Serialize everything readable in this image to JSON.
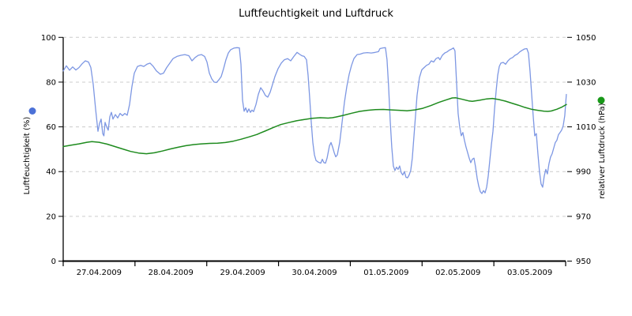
{
  "chart_data": {
    "type": "line",
    "title": "Luftfeuchtigkeit und Luftdruck",
    "grid": "horizontal-dashed",
    "grid_color": "#cccccc",
    "axis_color": "#000000",
    "background_color": "#ffffff",
    "x_axis": {
      "tick_labels": [
        "27.04.2009",
        "28.04.2009",
        "29.04.2009",
        "30.04.2009",
        "01.05.2009",
        "02.05.2009",
        "03.05.2009"
      ],
      "days": 7
    },
    "y_left": {
      "label": "Luftfeuchtigkeit (%)",
      "range": [
        0,
        100
      ],
      "ticks": [
        0,
        20,
        40,
        60,
        80,
        100
      ],
      "legend_marker_color": "#4c71d7"
    },
    "y_right": {
      "label": "relativer Luftdruck (hPa)",
      "range": [
        950,
        1050
      ],
      "ticks": [
        950,
        970,
        990,
        1010,
        1030,
        1050
      ],
      "legend_marker_color": "#189818"
    },
    "series": [
      {
        "name": "Luftfeuchtigkeit",
        "unit": "%",
        "axis": "left",
        "color": "#7d97e3",
        "stroke_width": 1.3,
        "points": [
          [
            0,
            85
          ],
          [
            0.044,
            87.3
          ],
          [
            0.088,
            85.3
          ],
          [
            0.132,
            86.8
          ],
          [
            0.176,
            85.4
          ],
          [
            0.22,
            86.5
          ],
          [
            0.264,
            88.2
          ],
          [
            0.308,
            89.5
          ],
          [
            0.352,
            89
          ],
          [
            0.385,
            86.5
          ],
          [
            0.418,
            79
          ],
          [
            0.451,
            68
          ],
          [
            0.484,
            58
          ],
          [
            0.506,
            61.5
          ],
          [
            0.528,
            63.5
          ],
          [
            0.55,
            57
          ],
          [
            0.567,
            56
          ],
          [
            0.583,
            62
          ],
          [
            0.605,
            60
          ],
          [
            0.627,
            58.5
          ],
          [
            0.649,
            64.5
          ],
          [
            0.671,
            66.5
          ],
          [
            0.693,
            63.5
          ],
          [
            0.726,
            65.5
          ],
          [
            0.759,
            64
          ],
          [
            0.792,
            66
          ],
          [
            0.825,
            65
          ],
          [
            0.858,
            66
          ],
          [
            0.891,
            65.2
          ],
          [
            0.924,
            70
          ],
          [
            0.957,
            78
          ],
          [
            0.991,
            84
          ],
          [
            1.035,
            87
          ],
          [
            1.079,
            87.5
          ],
          [
            1.123,
            87
          ],
          [
            1.167,
            88
          ],
          [
            1.211,
            88.5
          ],
          [
            1.255,
            87
          ],
          [
            1.299,
            85
          ],
          [
            1.354,
            83.5
          ],
          [
            1.398,
            84
          ],
          [
            1.442,
            86.5
          ],
          [
            1.486,
            88.5
          ],
          [
            1.53,
            90.5
          ],
          [
            1.585,
            91.5
          ],
          [
            1.64,
            92
          ],
          [
            1.695,
            92.3
          ],
          [
            1.75,
            91.8
          ],
          [
            1.794,
            89.5
          ],
          [
            1.838,
            91
          ],
          [
            1.882,
            92
          ],
          [
            1.926,
            92.3
          ],
          [
            1.97,
            91.5
          ],
          [
            2.003,
            89
          ],
          [
            2.036,
            84
          ],
          [
            2.069,
            81.5
          ],
          [
            2.102,
            80
          ],
          [
            2.135,
            79.8
          ],
          [
            2.168,
            81
          ],
          [
            2.201,
            82.5
          ],
          [
            2.234,
            86
          ],
          [
            2.267,
            90
          ],
          [
            2.3,
            93
          ],
          [
            2.333,
            94.5
          ],
          [
            2.377,
            95.2
          ],
          [
            2.421,
            95.4
          ],
          [
            2.454,
            95.3
          ],
          [
            2.476,
            88
          ],
          [
            2.498,
            72
          ],
          [
            2.52,
            67
          ],
          [
            2.542,
            68.5
          ],
          [
            2.564,
            66.5
          ],
          [
            2.586,
            68
          ],
          [
            2.608,
            66.5
          ],
          [
            2.63,
            67.5
          ],
          [
            2.652,
            66.8
          ],
          [
            2.686,
            70
          ],
          [
            2.719,
            74.5
          ],
          [
            2.752,
            77.5
          ],
          [
            2.785,
            76
          ],
          [
            2.818,
            74
          ],
          [
            2.851,
            73.3
          ],
          [
            2.884,
            75.5
          ],
          [
            2.917,
            79
          ],
          [
            2.95,
            82.5
          ],
          [
            2.994,
            86
          ],
          [
            3.038,
            88.5
          ],
          [
            3.082,
            90
          ],
          [
            3.126,
            90.5
          ],
          [
            3.17,
            89.5
          ],
          [
            3.214,
            91.5
          ],
          [
            3.258,
            93.3
          ],
          [
            3.291,
            92.5
          ],
          [
            3.324,
            91.8
          ],
          [
            3.357,
            91.5
          ],
          [
            3.39,
            90
          ],
          [
            3.412,
            83
          ],
          [
            3.434,
            73
          ],
          [
            3.456,
            62
          ],
          [
            3.478,
            53
          ],
          [
            3.5,
            47.5
          ],
          [
            3.522,
            45
          ],
          [
            3.555,
            44.2
          ],
          [
            3.588,
            43.8
          ],
          [
            3.61,
            45.5
          ],
          [
            3.632,
            44
          ],
          [
            3.654,
            43.8
          ],
          [
            3.676,
            46
          ],
          [
            3.709,
            51.5
          ],
          [
            3.731,
            53
          ],
          [
            3.753,
            51
          ],
          [
            3.775,
            48.5
          ],
          [
            3.797,
            46.6
          ],
          [
            3.819,
            47.5
          ],
          [
            3.852,
            53
          ],
          [
            3.885,
            62
          ],
          [
            3.918,
            71
          ],
          [
            3.951,
            78
          ],
          [
            3.984,
            83.5
          ],
          [
            4.017,
            87.5
          ],
          [
            4.05,
            90.5
          ],
          [
            4.094,
            92.3
          ],
          [
            4.138,
            92.5
          ],
          [
            4.182,
            93
          ],
          [
            4.237,
            93.2
          ],
          [
            4.292,
            93
          ],
          [
            4.347,
            93.3
          ],
          [
            4.391,
            93.6
          ],
          [
            4.413,
            95
          ],
          [
            4.457,
            95.3
          ],
          [
            4.49,
            95.4
          ],
          [
            4.512,
            90
          ],
          [
            4.534,
            78
          ],
          [
            4.556,
            63
          ],
          [
            4.578,
            51
          ],
          [
            4.6,
            42.5
          ],
          [
            4.622,
            40.5
          ],
          [
            4.644,
            42
          ],
          [
            4.666,
            41
          ],
          [
            4.688,
            42.5
          ],
          [
            4.71,
            39.5
          ],
          [
            4.732,
            38.5
          ],
          [
            4.754,
            40
          ],
          [
            4.776,
            37.5
          ],
          [
            4.798,
            37.2
          ],
          [
            4.82,
            38.5
          ],
          [
            4.842,
            40.5
          ],
          [
            4.864,
            46
          ],
          [
            4.897,
            60
          ],
          [
            4.93,
            74
          ],
          [
            4.963,
            82
          ],
          [
            4.996,
            85.5
          ],
          [
            5.029,
            86.5
          ],
          [
            5.062,
            87.5
          ],
          [
            5.095,
            88
          ],
          [
            5.128,
            89.5
          ],
          [
            5.161,
            89
          ],
          [
            5.194,
            90.5
          ],
          [
            5.227,
            91
          ],
          [
            5.249,
            90
          ],
          [
            5.282,
            92
          ],
          [
            5.315,
            93
          ],
          [
            5.348,
            93.5
          ],
          [
            5.381,
            94.3
          ],
          [
            5.414,
            94.8
          ],
          [
            5.436,
            95.3
          ],
          [
            5.458,
            94
          ],
          [
            5.48,
            80
          ],
          [
            5.502,
            66
          ],
          [
            5.524,
            60
          ],
          [
            5.546,
            56
          ],
          [
            5.568,
            57.5
          ],
          [
            5.59,
            54
          ],
          [
            5.612,
            51
          ],
          [
            5.634,
            48.5
          ],
          [
            5.656,
            46
          ],
          [
            5.678,
            44
          ],
          [
            5.7,
            45.5
          ],
          [
            5.723,
            46
          ],
          [
            5.745,
            42
          ],
          [
            5.767,
            37
          ],
          [
            5.789,
            33.5
          ],
          [
            5.811,
            31
          ],
          [
            5.833,
            30.2
          ],
          [
            5.855,
            31.5
          ],
          [
            5.877,
            30.5
          ],
          [
            5.899,
            33
          ],
          [
            5.921,
            38
          ],
          [
            5.943,
            45
          ],
          [
            5.965,
            52
          ],
          [
            5.987,
            58
          ],
          [
            6.009,
            68
          ],
          [
            6.031,
            76
          ],
          [
            6.053,
            83
          ],
          [
            6.075,
            87
          ],
          [
            6.097,
            88.5
          ],
          [
            6.13,
            88.8
          ],
          [
            6.163,
            88
          ],
          [
            6.196,
            89.5
          ],
          [
            6.229,
            90.5
          ],
          [
            6.262,
            91
          ],
          [
            6.295,
            92
          ],
          [
            6.328,
            92.5
          ],
          [
            6.361,
            93.5
          ],
          [
            6.394,
            94.2
          ],
          [
            6.427,
            94.8
          ],
          [
            6.46,
            95
          ],
          [
            6.482,
            93
          ],
          [
            6.504,
            85
          ],
          [
            6.526,
            75
          ],
          [
            6.548,
            65
          ],
          [
            6.57,
            56
          ],
          [
            6.592,
            57
          ],
          [
            6.614,
            48
          ],
          [
            6.636,
            40
          ],
          [
            6.658,
            34.5
          ],
          [
            6.68,
            33
          ],
          [
            6.702,
            38
          ],
          [
            6.724,
            41
          ],
          [
            6.746,
            39
          ],
          [
            6.768,
            43.5
          ],
          [
            6.79,
            46.5
          ],
          [
            6.812,
            48
          ],
          [
            6.834,
            50.5
          ],
          [
            6.856,
            53
          ],
          [
            6.878,
            54
          ],
          [
            6.9,
            56.5
          ],
          [
            6.922,
            57.5
          ],
          [
            6.944,
            58.5
          ],
          [
            6.966,
            60.5
          ],
          [
            6.988,
            65
          ],
          [
            7.01,
            74.5
          ]
        ]
      },
      {
        "name": "relativer Luftdruck",
        "unit": "hPa",
        "axis": "right",
        "color": "#1e8b1e",
        "stroke_width": 1.5,
        "points": [
          [
            0,
            1001.2
          ],
          [
            0.11,
            1001.8
          ],
          [
            0.22,
            1002.4
          ],
          [
            0.33,
            1003.1
          ],
          [
            0.4,
            1003.4
          ],
          [
            0.5,
            1003.1
          ],
          [
            0.61,
            1002.3
          ],
          [
            0.72,
            1001.2
          ],
          [
            0.83,
            1000.1
          ],
          [
            0.94,
            999.0
          ],
          [
            1.05,
            998.3
          ],
          [
            1.16,
            998.0
          ],
          [
            1.27,
            998.4
          ],
          [
            1.38,
            999.2
          ],
          [
            1.49,
            1000.1
          ],
          [
            1.6,
            1000.9
          ],
          [
            1.71,
            1001.6
          ],
          [
            1.82,
            1002.1
          ],
          [
            1.93,
            1002.4
          ],
          [
            2.04,
            1002.6
          ],
          [
            2.15,
            1002.7
          ],
          [
            2.26,
            1003.0
          ],
          [
            2.37,
            1003.6
          ],
          [
            2.48,
            1004.5
          ],
          [
            2.59,
            1005.5
          ],
          [
            2.7,
            1006.6
          ],
          [
            2.75,
            1007.3
          ],
          [
            2.81,
            1008.1
          ],
          [
            2.92,
            1009.6
          ],
          [
            3.03,
            1011.0
          ],
          [
            3.14,
            1011.9
          ],
          [
            3.25,
            1012.7
          ],
          [
            3.36,
            1013.3
          ],
          [
            3.47,
            1013.8
          ],
          [
            3.58,
            1014.1
          ],
          [
            3.64,
            1014.0
          ],
          [
            3.69,
            1013.9
          ],
          [
            3.75,
            1014.1
          ],
          [
            3.8,
            1014.4
          ],
          [
            3.91,
            1015.2
          ],
          [
            4.02,
            1016.1
          ],
          [
            4.13,
            1016.9
          ],
          [
            4.24,
            1017.4
          ],
          [
            4.35,
            1017.7
          ],
          [
            4.46,
            1017.8
          ],
          [
            4.57,
            1017.6
          ],
          [
            4.68,
            1017.4
          ],
          [
            4.79,
            1017.2
          ],
          [
            4.9,
            1017.6
          ],
          [
            5.01,
            1018.3
          ],
          [
            5.12,
            1019.5
          ],
          [
            5.23,
            1020.9
          ],
          [
            5.34,
            1022.1
          ],
          [
            5.42,
            1022.9
          ],
          [
            5.47,
            1023.0
          ],
          [
            5.56,
            1022.3
          ],
          [
            5.65,
            1021.6
          ],
          [
            5.7,
            1021.4
          ],
          [
            5.8,
            1021.9
          ],
          [
            5.9,
            1022.5
          ],
          [
            5.98,
            1022.7
          ],
          [
            6.07,
            1022.2
          ],
          [
            6.16,
            1021.5
          ],
          [
            6.25,
            1020.6
          ],
          [
            6.34,
            1019.7
          ],
          [
            6.43,
            1018.7
          ],
          [
            6.52,
            1017.9
          ],
          [
            6.61,
            1017.4
          ],
          [
            6.7,
            1017.0
          ],
          [
            6.75,
            1016.9
          ],
          [
            6.8,
            1017.1
          ],
          [
            6.88,
            1017.9
          ],
          [
            6.95,
            1018.9
          ],
          [
            7.01,
            1020.0
          ]
        ]
      }
    ]
  }
}
